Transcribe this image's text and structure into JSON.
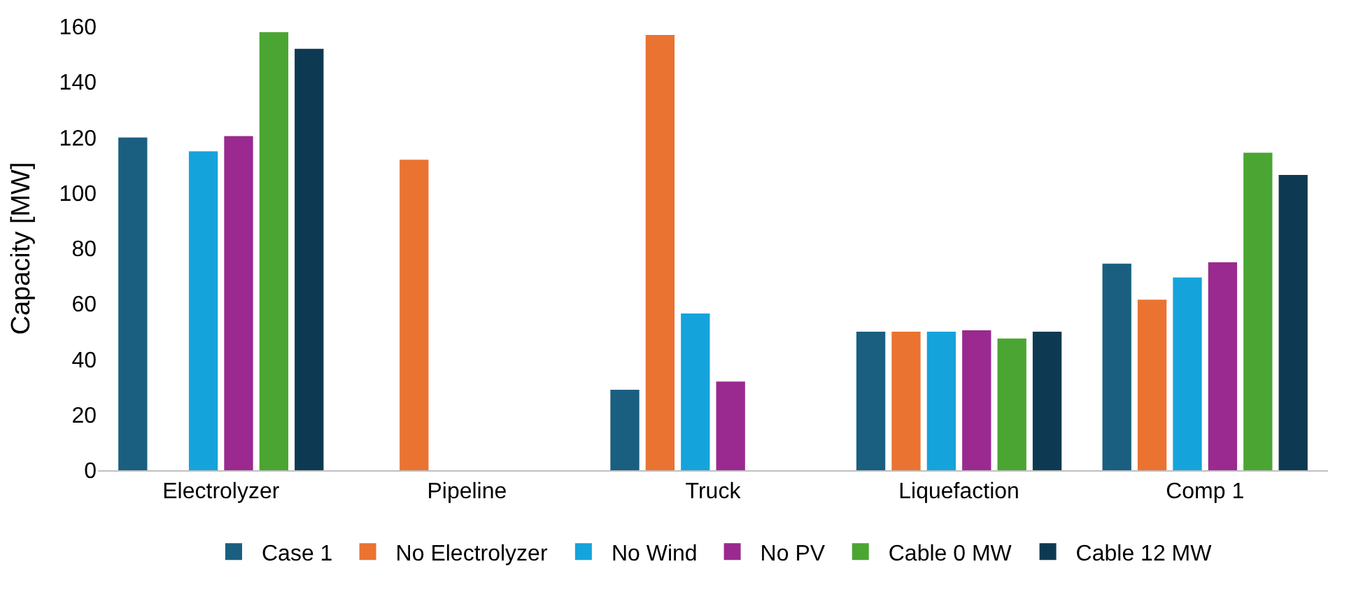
{
  "chart_data": {
    "type": "bar",
    "ylabel": "Capacity [MW]",
    "categories": [
      "Electrolyzer",
      "Pipeline",
      "Truck",
      "Liquefaction",
      "Comp 1"
    ],
    "series": [
      {
        "name": "Case 1",
        "color": "#1a5f80",
        "values": [
          120,
          0,
          29,
          50,
          74.5
        ]
      },
      {
        "name": "No Electrolyzer",
        "color": "#ea7331",
        "values": [
          0,
          112,
          157,
          50,
          61.5
        ]
      },
      {
        "name": "No Wind",
        "color": "#15a3dc",
        "values": [
          115,
          0,
          56.5,
          50,
          69.5
        ]
      },
      {
        "name": "No PV",
        "color": "#9a2a8f",
        "values": [
          120.5,
          0,
          32,
          50.5,
          75
        ]
      },
      {
        "name": "Cable 0 MW",
        "color": "#4ba533",
        "values": [
          158,
          0,
          0,
          47.5,
          114.5
        ]
      },
      {
        "name": "Cable 12 MW",
        "color": "#0d3a52",
        "values": [
          152,
          0,
          0,
          50,
          106.5
        ]
      }
    ],
    "ylim": [
      0,
      160
    ],
    "yticks": [
      0,
      20,
      40,
      60,
      80,
      100,
      120,
      140,
      160
    ],
    "legend": "bottom"
  }
}
